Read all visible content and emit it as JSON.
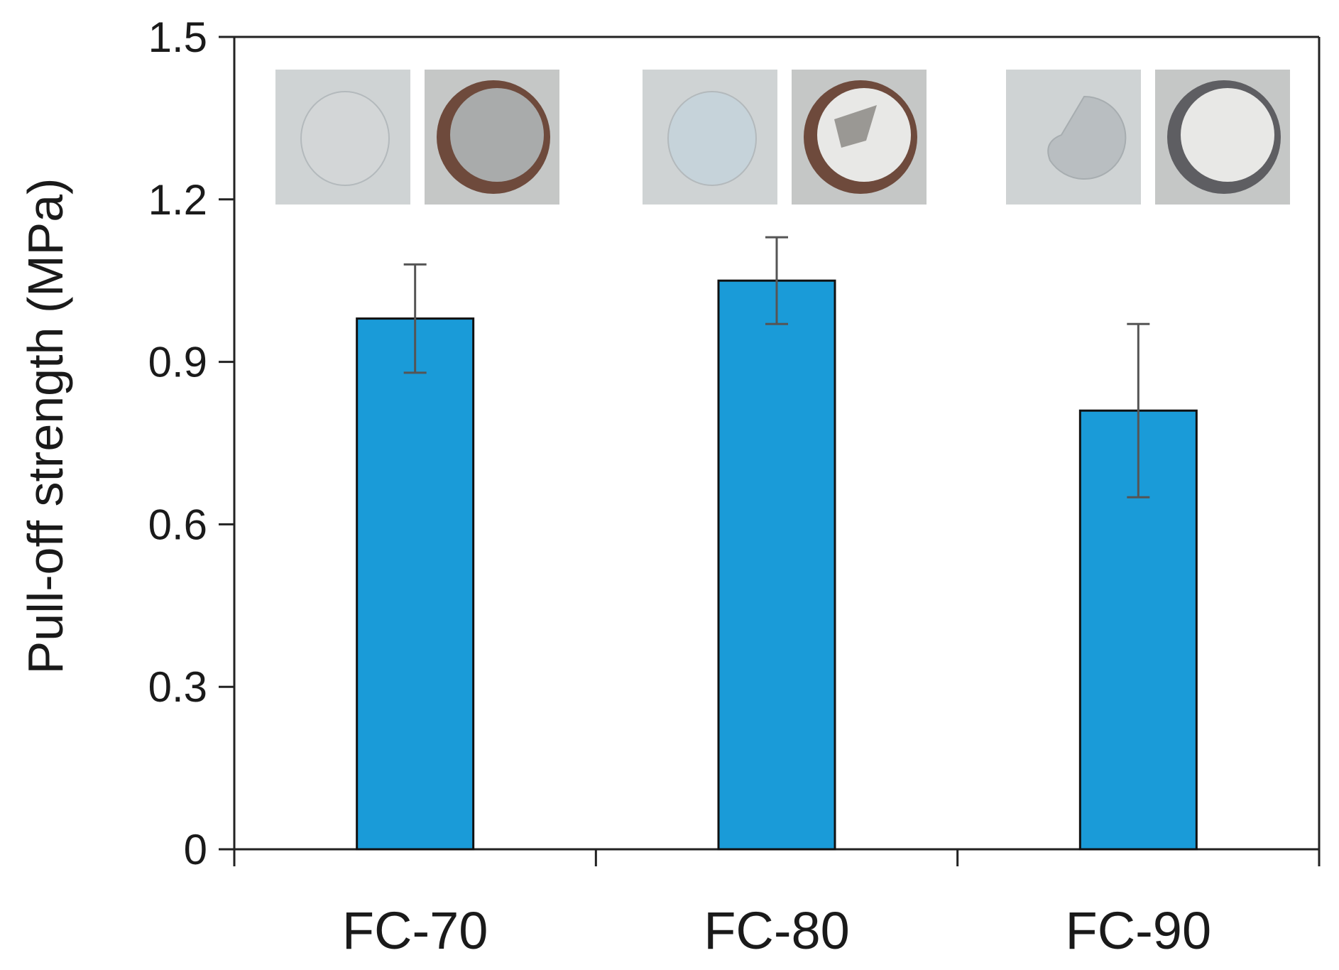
{
  "chart_data": {
    "type": "bar",
    "title": "",
    "xlabel": "",
    "ylabel": "Pull-off strength (MPa)",
    "categories": [
      "FC-70",
      "FC-80",
      "FC-90"
    ],
    "values": [
      0.98,
      1.05,
      0.81
    ],
    "error": [
      0.1,
      0.08,
      0.16
    ],
    "ylim": [
      0,
      1.5
    ],
    "yticks": [
      0,
      0.3,
      0.6,
      0.9,
      1.2,
      1.5
    ],
    "ytick_labels": [
      "0",
      "0.3",
      "0.6",
      "0.9",
      "1.2",
      "1.5"
    ],
    "grid": false,
    "bar_color": "#1a9bd8",
    "insets": [
      {
        "category": "FC-70",
        "images": [
          "substrate-after-pulloff-photo",
          "dolly-after-pulloff-photo"
        ]
      },
      {
        "category": "FC-80",
        "images": [
          "substrate-after-pulloff-photo",
          "dolly-after-pulloff-photo"
        ]
      },
      {
        "category": "FC-90",
        "images": [
          "substrate-after-pulloff-photo",
          "dolly-after-pulloff-photo"
        ]
      }
    ]
  }
}
